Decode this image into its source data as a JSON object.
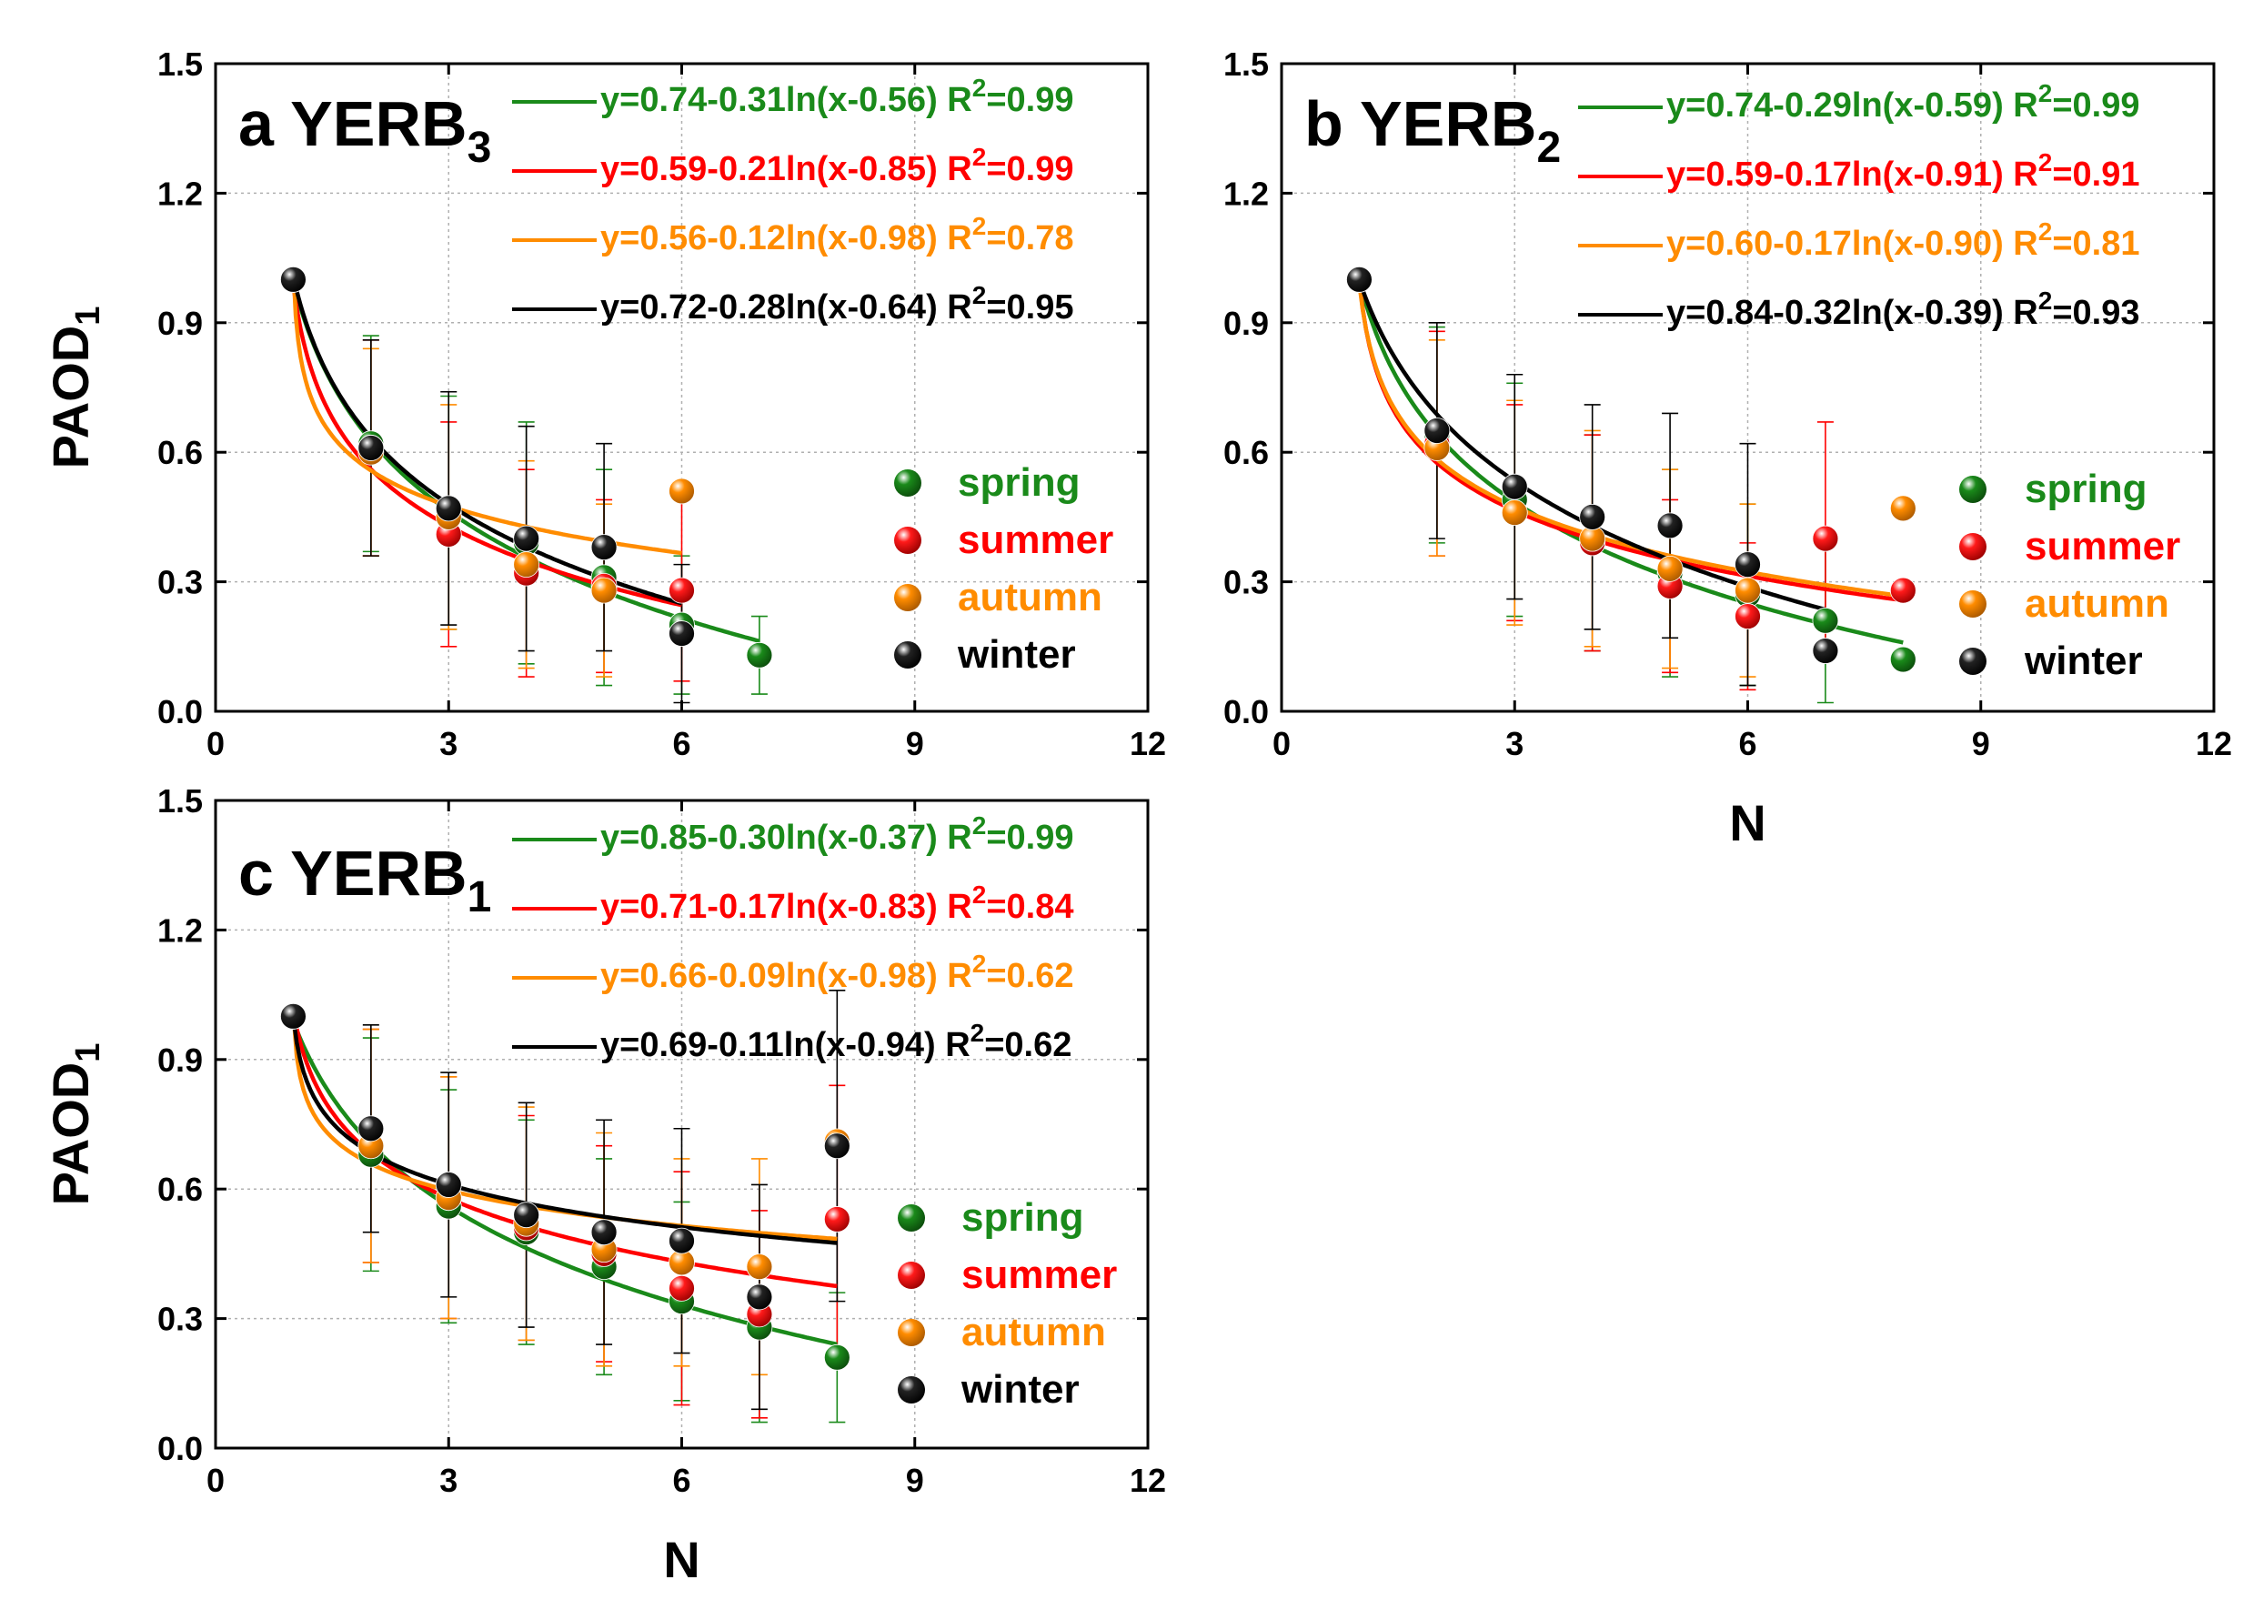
{
  "chart_data": [
    {
      "type": "scatter",
      "panel_letter": "a",
      "panel_title": "YERB",
      "panel_subscript": "3",
      "ylabel": "PAOD",
      "ylabel_sub": "1",
      "xlabel": "",
      "xlim": [
        0,
        12
      ],
      "ylim": [
        0,
        1.5
      ],
      "xticks": [
        "0",
        "3",
        "6",
        "9",
        "12"
      ],
      "yticks": [
        "0.0",
        "0.3",
        "0.6",
        "0.9",
        "1.2",
        "1.5"
      ],
      "grid": true,
      "fits": [
        {
          "season": "spring",
          "color": "#1a8a1a",
          "a": 0.74,
          "b": 0.31,
          "c": 0.56,
          "xmax": 7,
          "label": "y=0.74-0.31ln(x-0.56)",
          "r2": "=0.99"
        },
        {
          "season": "summer",
          "color": "#ff0000",
          "a": 0.59,
          "b": 0.21,
          "c": 0.85,
          "xmax": 6,
          "label": "y=0.59-0.21ln(x-0.85)",
          "r2": "=0.99"
        },
        {
          "season": "autumn",
          "color": "#ff8c00",
          "a": 0.56,
          "b": 0.12,
          "c": 0.98,
          "xmax": 6,
          "label": "y=0.56-0.12ln(x-0.98)",
          "r2": "=0.78"
        },
        {
          "season": "winter",
          "color": "#000000",
          "a": 0.72,
          "b": 0.28,
          "c": 0.64,
          "xmax": 6,
          "label": "y=0.72-0.28ln(x-0.64)",
          "r2": "=0.95"
        }
      ],
      "series": [
        {
          "name": "spring",
          "color": "#1a8a1a",
          "x": [
            1,
            2,
            3,
            4,
            5,
            6,
            7
          ],
          "y": [
            1.0,
            0.62,
            0.46,
            0.39,
            0.31,
            0.2,
            0.13
          ],
          "err": [
            0,
            0.25,
            0.27,
            0.28,
            0.25,
            0.16,
            0.09
          ]
        },
        {
          "name": "summer",
          "color": "#ff0000",
          "x": [
            1,
            2,
            3,
            4,
            5,
            6
          ],
          "y": [
            1.0,
            0.61,
            0.41,
            0.32,
            0.29,
            0.28
          ],
          "err": [
            0,
            0.25,
            0.26,
            0.24,
            0.2,
            0.21
          ]
        },
        {
          "name": "autumn",
          "color": "#ff8c00",
          "x": [
            1,
            2,
            3,
            4,
            5,
            6
          ],
          "y": [
            1.0,
            0.6,
            0.45,
            0.34,
            0.28,
            0.51
          ],
          "err": [
            0,
            0.24,
            0.26,
            0.24,
            0.2,
            0.0
          ]
        },
        {
          "name": "winter",
          "color": "#000000",
          "x": [
            1,
            2,
            3,
            4,
            5,
            6
          ],
          "y": [
            1.0,
            0.61,
            0.47,
            0.4,
            0.38,
            0.18
          ],
          "err": [
            0,
            0.25,
            0.27,
            0.26,
            0.24,
            0.16
          ]
        }
      ]
    },
    {
      "type": "scatter",
      "panel_letter": "b",
      "panel_title": "YERB",
      "panel_subscript": "2",
      "ylabel": "",
      "ylabel_sub": "",
      "xlabel": "N",
      "xlim": [
        0,
        12
      ],
      "ylim": [
        0,
        1.5
      ],
      "xticks": [
        "0",
        "3",
        "6",
        "9",
        "12"
      ],
      "yticks": [
        "0.0",
        "0.3",
        "0.6",
        "0.9",
        "1.2",
        "1.5"
      ],
      "grid": true,
      "fits": [
        {
          "season": "spring",
          "color": "#1a8a1a",
          "a": 0.74,
          "b": 0.29,
          "c": 0.59,
          "xmax": 8,
          "label": "y=0.74-0.29ln(x-0.59)",
          "r2": "=0.99"
        },
        {
          "season": "summer",
          "color": "#ff0000",
          "a": 0.59,
          "b": 0.17,
          "c": 0.91,
          "xmax": 8,
          "label": "y=0.59-0.17ln(x-0.91)",
          "r2": "=0.91"
        },
        {
          "season": "autumn",
          "color": "#ff8c00",
          "a": 0.6,
          "b": 0.17,
          "c": 0.9,
          "xmax": 8,
          "label": "y=0.60-0.17ln(x-0.90)",
          "r2": "=0.81"
        },
        {
          "season": "winter",
          "color": "#000000",
          "a": 0.84,
          "b": 0.32,
          "c": 0.39,
          "xmax": 7,
          "label": "y=0.84-0.32ln(x-0.39)",
          "r2": "=0.93"
        }
      ],
      "series": [
        {
          "name": "spring",
          "color": "#1a8a1a",
          "x": [
            1,
            2,
            3,
            4,
            5,
            6,
            7,
            8
          ],
          "y": [
            1.0,
            0.64,
            0.49,
            0.39,
            0.32,
            0.27,
            0.21,
            0.12
          ],
          "err": [
            0,
            0.25,
            0.27,
            0.25,
            0.24,
            0.21,
            0.19,
            0.0
          ]
        },
        {
          "name": "summer",
          "color": "#ff0000",
          "x": [
            1,
            2,
            3,
            4,
            5,
            6,
            7,
            8
          ],
          "y": [
            1.0,
            0.62,
            0.46,
            0.39,
            0.29,
            0.22,
            0.4,
            0.28
          ],
          "err": [
            0,
            0.26,
            0.25,
            0.25,
            0.2,
            0.17,
            0.27,
            0.0
          ]
        },
        {
          "name": "autumn",
          "color": "#ff8c00",
          "x": [
            1,
            2,
            3,
            4,
            5,
            6,
            8
          ],
          "y": [
            1.0,
            0.61,
            0.46,
            0.4,
            0.33,
            0.28,
            0.47
          ],
          "err": [
            0,
            0.25,
            0.26,
            0.25,
            0.23,
            0.2,
            0.0
          ]
        },
        {
          "name": "winter",
          "color": "#000000",
          "x": [
            1,
            2,
            3,
            4,
            5,
            6,
            7
          ],
          "y": [
            1.0,
            0.65,
            0.52,
            0.45,
            0.43,
            0.34,
            0.14
          ],
          "err": [
            0,
            0.25,
            0.26,
            0.26,
            0.26,
            0.28,
            0.0
          ]
        }
      ]
    },
    {
      "type": "scatter",
      "panel_letter": "c",
      "panel_title": "YERB",
      "panel_subscript": "1",
      "ylabel": "PAOD",
      "ylabel_sub": "1",
      "xlabel": "N",
      "xlim": [
        0,
        12
      ],
      "ylim": [
        0,
        1.5
      ],
      "xticks": [
        "0",
        "3",
        "6",
        "9",
        "12"
      ],
      "yticks": [
        "0.0",
        "0.3",
        "0.6",
        "0.9",
        "1.2",
        "1.5"
      ],
      "grid": true,
      "fits": [
        {
          "season": "spring",
          "color": "#1a8a1a",
          "a": 0.85,
          "b": 0.3,
          "c": 0.37,
          "xmax": 8,
          "label": "y=0.85-0.30ln(x-0.37)",
          "r2": "=0.99"
        },
        {
          "season": "summer",
          "color": "#ff0000",
          "a": 0.71,
          "b": 0.17,
          "c": 0.83,
          "xmax": 8,
          "label": "y=0.71-0.17ln(x-0.83)",
          "r2": "=0.84"
        },
        {
          "season": "autumn",
          "color": "#ff8c00",
          "a": 0.66,
          "b": 0.09,
          "c": 0.98,
          "xmax": 8,
          "label": "y=0.66-0.09ln(x-0.98)",
          "r2": "=0.62"
        },
        {
          "season": "winter",
          "color": "#000000",
          "a": 0.69,
          "b": 0.11,
          "c": 0.94,
          "xmax": 8,
          "label": "y=0.69-0.11ln(x-0.94)",
          "r2": "=0.62"
        }
      ],
      "series": [
        {
          "name": "spring",
          "color": "#1a8a1a",
          "x": [
            1,
            2,
            3,
            4,
            5,
            6,
            7,
            8
          ],
          "y": [
            1.0,
            0.68,
            0.56,
            0.5,
            0.42,
            0.34,
            0.28,
            0.21
          ],
          "err": [
            0,
            0.27,
            0.27,
            0.26,
            0.25,
            0.23,
            0.22,
            0.15
          ]
        },
        {
          "name": "summer",
          "color": "#ff0000",
          "x": [
            1,
            2,
            3,
            4,
            5,
            6,
            7,
            8
          ],
          "y": [
            1.0,
            0.7,
            0.58,
            0.51,
            0.45,
            0.37,
            0.31,
            0.53
          ],
          "err": [
            0,
            0.27,
            0.28,
            0.26,
            0.25,
            0.27,
            0.24,
            0.31
          ]
        },
        {
          "name": "autumn",
          "color": "#ff8c00",
          "x": [
            1,
            2,
            3,
            4,
            5,
            6,
            7,
            8
          ],
          "y": [
            1.0,
            0.7,
            0.58,
            0.52,
            0.46,
            0.43,
            0.42,
            0.71
          ],
          "err": [
            0,
            0.27,
            0.28,
            0.27,
            0.27,
            0.24,
            0.25,
            0.0
          ]
        },
        {
          "name": "winter",
          "color": "#000000",
          "x": [
            1,
            2,
            3,
            4,
            5,
            6,
            7,
            8
          ],
          "y": [
            1.0,
            0.74,
            0.61,
            0.54,
            0.5,
            0.48,
            0.35,
            0.7
          ],
          "err": [
            0,
            0.24,
            0.26,
            0.26,
            0.26,
            0.26,
            0.26,
            0.36
          ]
        }
      ]
    }
  ],
  "legend_labels": {
    "spring": "spring",
    "summer": "summer",
    "autumn": "autumn",
    "winter": "winter",
    "r2_prefix": "R",
    "r2_sup": "2"
  }
}
